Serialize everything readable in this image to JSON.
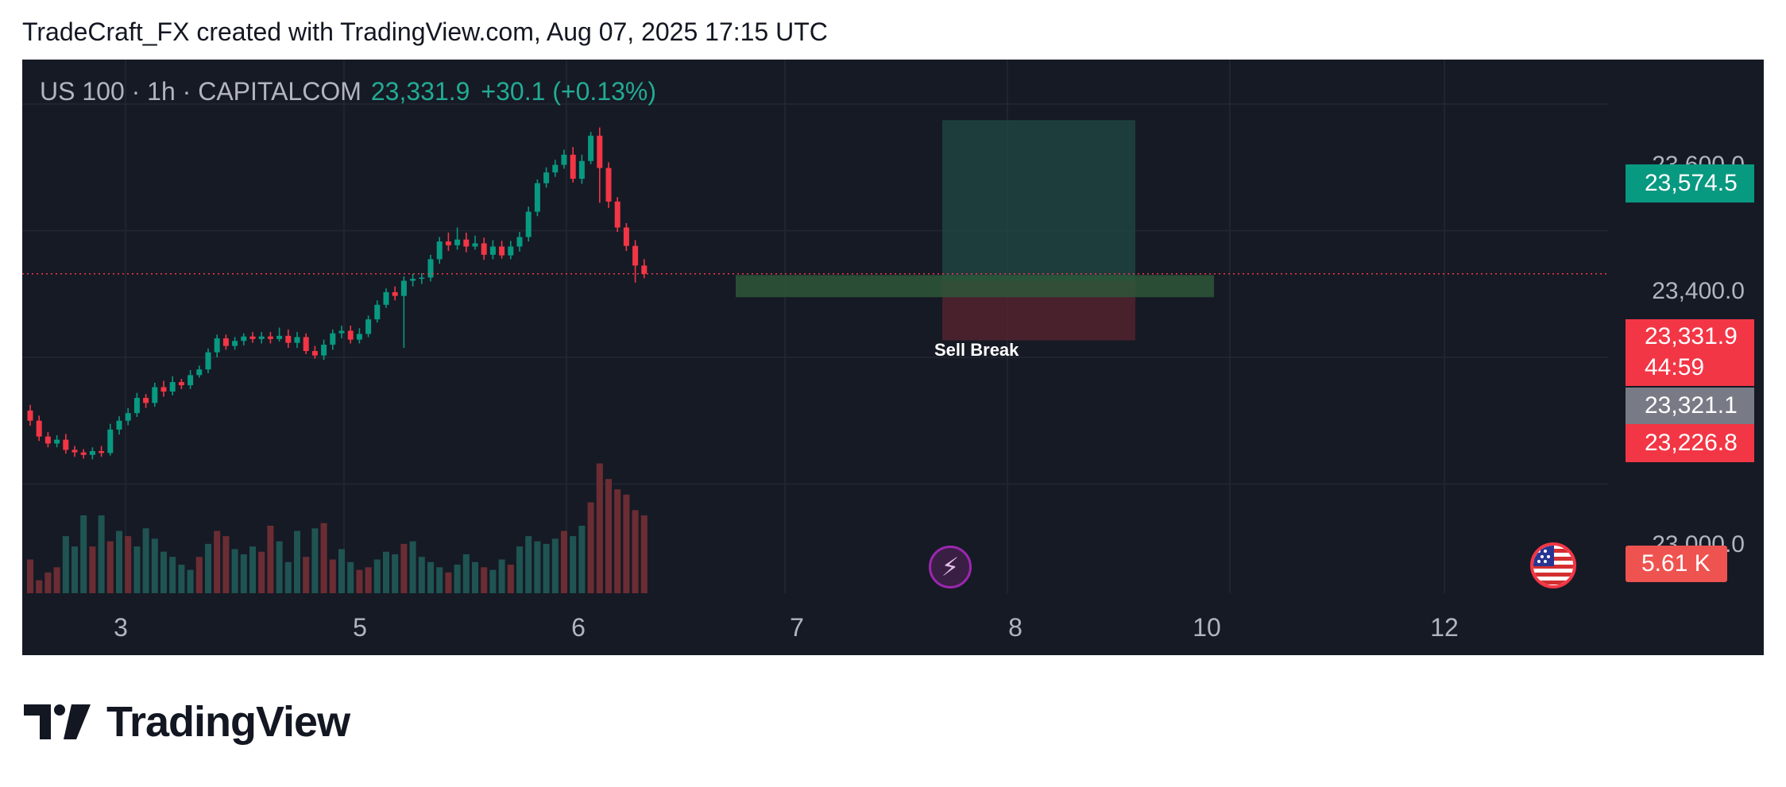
{
  "caption": "TradeCraft_FX created with TradingView.com, Aug 07, 2025 17:15 UTC",
  "legend": {
    "symbol": "US 100 · 1h · CAPITALCOM",
    "last": "23,331.9",
    "change": "+30.1 (+0.13%)"
  },
  "colors": {
    "background": "#161a25",
    "up": "#089981",
    "down": "#f23645",
    "volume_up": "#1f5452",
    "volume_down": "#6b2d33",
    "grid": "#232733"
  },
  "price_tags": {
    "target": "23,574.5",
    "current_price": "23,331.9",
    "countdown": "44:59",
    "entry": "23,321.1",
    "stop": "23,226.8",
    "volume": "5.61 K"
  },
  "annotations": {
    "sell_break": "Sell Break"
  },
  "icons": {
    "event": "lightning-bolt-icon",
    "economic_event": "us-flag-icon"
  },
  "brand": {
    "logo_text": "TradingView"
  },
  "chart_data": {
    "type": "candlestick",
    "interval": "1h",
    "y_ticks": [
      "23,600.0",
      "23,400.0",
      "23,000.0"
    ],
    "y_tick_values": [
      23600,
      23400,
      23000
    ],
    "x_ticks": [
      "3",
      "5",
      "6",
      "7",
      "8",
      "10",
      "12"
    ],
    "ylim": [
      22930,
      23790
    ],
    "current_price": 23331.9,
    "position": {
      "side": "short",
      "entry": 23321.1,
      "target": 23574.5,
      "stop": 23226.8
    },
    "zone": {
      "low": 23295,
      "high": 23330
    },
    "grid": true,
    "candles": [
      [
        23116,
        23100,
        23125,
        23092
      ],
      [
        23100,
        23075,
        23108,
        23068
      ],
      [
        23075,
        23064,
        23082,
        23058
      ],
      [
        23064,
        23070,
        23077,
        23058
      ],
      [
        23070,
        23054,
        23079,
        23048
      ],
      [
        23054,
        23050,
        23060,
        23043
      ],
      [
        23050,
        23046,
        23055,
        23040
      ],
      [
        23046,
        23052,
        23058,
        23039
      ],
      [
        23052,
        23049,
        23060,
        23043
      ],
      [
        23049,
        23086,
        23095,
        23045
      ],
      [
        23086,
        23100,
        23107,
        23078
      ],
      [
        23100,
        23112,
        23120,
        23093
      ],
      [
        23112,
        23136,
        23144,
        23106
      ],
      [
        23136,
        23128,
        23142,
        23120
      ],
      [
        23128,
        23153,
        23160,
        23122
      ],
      [
        23153,
        23146,
        23163,
        23138
      ],
      [
        23146,
        23161,
        23170,
        23140
      ],
      [
        23161,
        23156,
        23166,
        23150
      ],
      [
        23156,
        23172,
        23180,
        23150
      ],
      [
        23172,
        23181,
        23187,
        23168
      ],
      [
        23181,
        23208,
        23214,
        23175
      ],
      [
        23208,
        23230,
        23236,
        23200
      ],
      [
        23230,
        23218,
        23236,
        23212
      ],
      [
        23218,
        23226,
        23232,
        23212
      ],
      [
        23226,
        23233,
        23238,
        23219
      ],
      [
        23233,
        23229,
        23240,
        23223
      ],
      [
        23229,
        23233,
        23240,
        23222
      ],
      [
        23233,
        23229,
        23240,
        23222
      ],
      [
        23229,
        23234,
        23247,
        23225
      ],
      [
        23234,
        23223,
        23244,
        23215
      ],
      [
        23223,
        23232,
        23240,
        23215
      ],
      [
        23232,
        23210,
        23238,
        23205
      ],
      [
        23210,
        23203,
        23218,
        23198
      ],
      [
        23203,
        23220,
        23228,
        23196
      ],
      [
        23220,
        23238,
        23244,
        23212
      ],
      [
        23238,
        23242,
        23250,
        23230
      ],
      [
        23242,
        23228,
        23250,
        23222
      ],
      [
        23228,
        23237,
        23246,
        23222
      ],
      [
        23237,
        23260,
        23266,
        23232
      ],
      [
        23260,
        23283,
        23290,
        23255
      ],
      [
        23283,
        23303,
        23309,
        23278
      ],
      [
        23303,
        23297,
        23312,
        23290
      ],
      [
        23297,
        23321,
        23328,
        23215
      ],
      [
        23321,
        23324,
        23332,
        23312
      ],
      [
        23324,
        23326,
        23333,
        23316
      ],
      [
        23326,
        23355,
        23362,
        23320
      ],
      [
        23355,
        23383,
        23390,
        23348
      ],
      [
        23383,
        23377,
        23397,
        23368
      ],
      [
        23377,
        23386,
        23405,
        23370
      ],
      [
        23386,
        23375,
        23397,
        23366
      ],
      [
        23375,
        23380,
        23392,
        23370
      ],
      [
        23380,
        23362,
        23389,
        23354
      ],
      [
        23362,
        23375,
        23385,
        23355
      ],
      [
        23375,
        23361,
        23384,
        23356
      ],
      [
        23361,
        23375,
        23384,
        23355
      ],
      [
        23375,
        23390,
        23398,
        23367
      ],
      [
        23390,
        23430,
        23438,
        23383
      ],
      [
        23430,
        23475,
        23481,
        23423
      ],
      [
        23475,
        23492,
        23500,
        23468
      ],
      [
        23492,
        23504,
        23512,
        23485
      ],
      [
        23504,
        23520,
        23528,
        23498
      ],
      [
        23520,
        23482,
        23532,
        23476
      ],
      [
        23482,
        23510,
        23520,
        23474
      ],
      [
        23510,
        23550,
        23556,
        23505
      ],
      [
        23550,
        23499,
        23563,
        23444
      ],
      [
        23499,
        23446,
        23508,
        23436
      ],
      [
        23446,
        23405,
        23453,
        23398
      ],
      [
        23405,
        23376,
        23412,
        23368
      ],
      [
        23376,
        23345,
        23385,
        23318
      ],
      [
        23345,
        23332,
        23355,
        23325
      ]
    ],
    "volume": [
      [
        13000,
        "down"
      ],
      [
        5000,
        "down"
      ],
      [
        8000,
        "down"
      ],
      [
        10000,
        "down"
      ],
      [
        22000,
        "up"
      ],
      [
        18000,
        "up"
      ],
      [
        30000,
        "up"
      ],
      [
        18000,
        "down"
      ],
      [
        30000,
        "up"
      ],
      [
        20000,
        "down"
      ],
      [
        24000,
        "up"
      ],
      [
        22000,
        "down"
      ],
      [
        18000,
        "up"
      ],
      [
        25000,
        "up"
      ],
      [
        21000,
        "up"
      ],
      [
        16000,
        "up"
      ],
      [
        14000,
        "up"
      ],
      [
        11000,
        "up"
      ],
      [
        9000,
        "up"
      ],
      [
        14000,
        "down"
      ],
      [
        19000,
        "up"
      ],
      [
        24000,
        "down"
      ],
      [
        22000,
        "down"
      ],
      [
        17000,
        "up"
      ],
      [
        15000,
        "up"
      ],
      [
        18000,
        "up"
      ],
      [
        16000,
        "down"
      ],
      [
        26000,
        "down"
      ],
      [
        20000,
        "up"
      ],
      [
        12000,
        "up"
      ],
      [
        24000,
        "up"
      ],
      [
        14000,
        "down"
      ],
      [
        25000,
        "up"
      ],
      [
        27000,
        "down"
      ],
      [
        13000,
        "down"
      ],
      [
        17000,
        "up"
      ],
      [
        12000,
        "up"
      ],
      [
        9000,
        "down"
      ],
      [
        10000,
        "down"
      ],
      [
        13000,
        "up"
      ],
      [
        16000,
        "up"
      ],
      [
        15000,
        "up"
      ],
      [
        19000,
        "down"
      ],
      [
        20000,
        "up"
      ],
      [
        14000,
        "up"
      ],
      [
        12000,
        "up"
      ],
      [
        10000,
        "up"
      ],
      [
        8000,
        "down"
      ],
      [
        11000,
        "up"
      ],
      [
        15000,
        "up"
      ],
      [
        12000,
        "up"
      ],
      [
        10000,
        "down"
      ],
      [
        9000,
        "up"
      ],
      [
        13000,
        "up"
      ],
      [
        11000,
        "down"
      ],
      [
        18000,
        "up"
      ],
      [
        22000,
        "up"
      ],
      [
        20000,
        "up"
      ],
      [
        19000,
        "up"
      ],
      [
        21000,
        "up"
      ],
      [
        24000,
        "down"
      ],
      [
        22000,
        "up"
      ],
      [
        26000,
        "up"
      ],
      [
        35000,
        "down"
      ],
      [
        50000,
        "down"
      ],
      [
        44000,
        "down"
      ],
      [
        40000,
        "down"
      ],
      [
        38000,
        "down"
      ],
      [
        32000,
        "down"
      ],
      [
        30000,
        "down"
      ]
    ]
  }
}
